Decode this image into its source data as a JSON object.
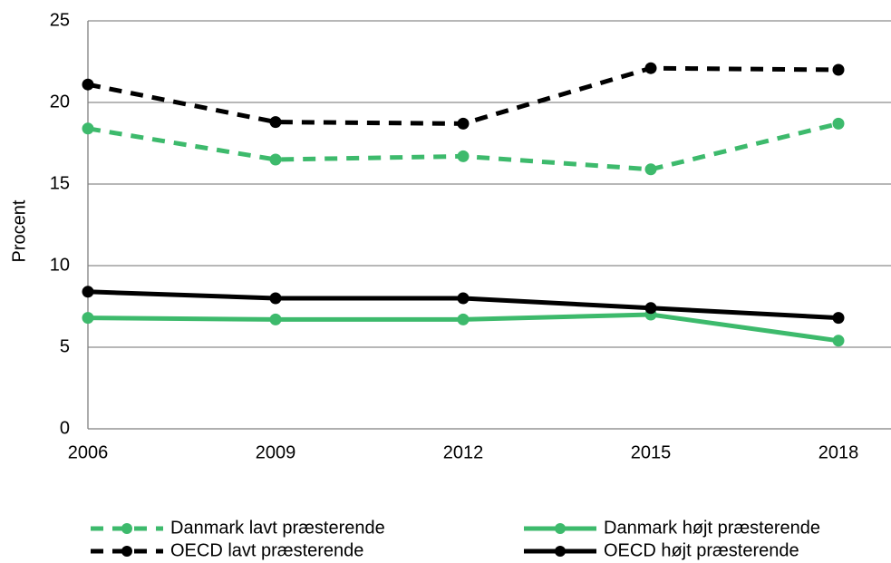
{
  "chart_data": {
    "type": "line",
    "ylabel": "Procent",
    "categories": [
      "2006",
      "2009",
      "2012",
      "2015",
      "2018"
    ],
    "ylim": [
      0,
      25
    ],
    "yticks": [
      0,
      5,
      10,
      15,
      20,
      25
    ],
    "grid": true,
    "legend": "bottom",
    "series": [
      {
        "name": "Danmark lavt præsterende",
        "color": "#3dba6c",
        "style": "dashed",
        "values": [
          18.4,
          16.5,
          16.7,
          15.9,
          18.7
        ]
      },
      {
        "name": "Danmark højt præsterende",
        "color": "#3dba6c",
        "style": "solid",
        "values": [
          6.8,
          6.7,
          6.7,
          7.0,
          5.4
        ]
      },
      {
        "name": "OECD lavt præsterende",
        "color": "#000000",
        "style": "dashed",
        "values": [
          21.1,
          18.8,
          18.7,
          22.1,
          22.0
        ]
      },
      {
        "name": "OECD højt præsterende",
        "color": "#000000",
        "style": "solid",
        "values": [
          8.4,
          8.0,
          8.0,
          7.4,
          6.8
        ]
      }
    ]
  }
}
